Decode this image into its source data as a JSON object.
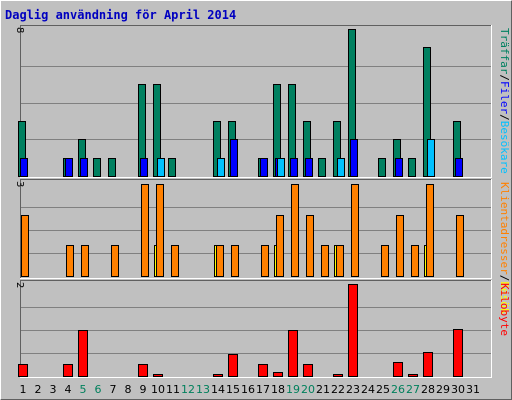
{
  "chart_data": {
    "type": "bar",
    "title": "Daglig användning för April 2014",
    "days": [
      "1",
      "2",
      "3",
      "4",
      "5",
      "6",
      "7",
      "8",
      "9",
      "10",
      "11",
      "12",
      "13",
      "14",
      "15",
      "16",
      "17",
      "18",
      "19",
      "20",
      "21",
      "22",
      "23",
      "24",
      "25",
      "26",
      "27",
      "28",
      "29",
      "30",
      "31"
    ],
    "weekend_days": [
      "5",
      "6",
      "12",
      "13",
      "19",
      "20",
      "26",
      "27"
    ],
    "panels": [
      {
        "id": "hits",
        "ymax_label": "8",
        "ymax": 8,
        "legend": [
          {
            "label": "Träffar",
            "color": "#008060"
          },
          {
            "label": "Filer",
            "color": "#0000ff"
          },
          {
            "label": "Besökare",
            "color": "#00c0ff"
          }
        ],
        "series": [
          {
            "name": "Träffar",
            "color": "#008060",
            "values": [
              3,
              0,
              0,
              1,
              2,
              1,
              1,
              0,
              5,
              5,
              1,
              0,
              0,
              3,
              3,
              0,
              1,
              5,
              5,
              3,
              1,
              3,
              8,
              0,
              1,
              2,
              1,
              7,
              0,
              3,
              0
            ]
          },
          {
            "name": "Filer",
            "color": "#0000ff",
            "values": [
              1,
              0,
              0,
              1,
              1,
              0,
              0,
              0,
              1,
              0,
              0,
              0,
              0,
              0,
              2,
              0,
              1,
              1,
              1,
              1,
              0,
              0,
              2,
              0,
              0,
              1,
              0,
              0,
              0,
              1,
              0
            ]
          },
          {
            "name": "Besökare",
            "color": "#00c0ff",
            "values": [
              0,
              0,
              0,
              0,
              0,
              0,
              0,
              0,
              0,
              1,
              0,
              0,
              0,
              1,
              0,
              0,
              0,
              1,
              0,
              0,
              0,
              1,
              0,
              0,
              0,
              0,
              0,
              2,
              0,
              0,
              0
            ]
          }
        ]
      },
      {
        "id": "sites",
        "ymax_label": "3",
        "ymax": 3,
        "legend": [
          {
            "label": "Klientadresser",
            "color": "#ff8000"
          },
          {
            "label": "Besök",
            "color": "#ffff00"
          }
        ],
        "series": [
          {
            "name": "Besök",
            "color": "#ffff00",
            "values": [
              0,
              0,
              0,
              0,
              0,
              0,
              0,
              0,
              0,
              1,
              0,
              0,
              0,
              1,
              0,
              0,
              0,
              1,
              0,
              0,
              0,
              1,
              0,
              0,
              0,
              0,
              0,
              1,
              0,
              0,
              0
            ]
          },
          {
            "name": "Klientadresser",
            "color": "#ff8000",
            "values": [
              2,
              0,
              0,
              1,
              1,
              0,
              1,
              0,
              3,
              3,
              1,
              0,
              0,
              1,
              1,
              0,
              1,
              2,
              3,
              2,
              1,
              1,
              3,
              0,
              1,
              2,
              1,
              3,
              0,
              2,
              0
            ]
          }
        ]
      },
      {
        "id": "kbytes",
        "ymax_label": "2",
        "ymax": 2,
        "legend": [
          {
            "label": "Kilobyte",
            "color": "#ff0000"
          }
        ],
        "series": [
          {
            "name": "Kilobyte",
            "color": "#ff0000",
            "values": [
              0.25,
              0,
              0,
              0.25,
              1.0,
              0,
              0,
              0,
              0.25,
              0.03,
              0,
              0,
              0,
              0.03,
              0.48,
              0,
              0.25,
              0.08,
              1.0,
              0.25,
              0,
              0.03,
              2.0,
              0,
              0,
              0.3,
              0.03,
              0.52,
              0,
              1.02,
              0
            ]
          }
        ]
      }
    ]
  }
}
